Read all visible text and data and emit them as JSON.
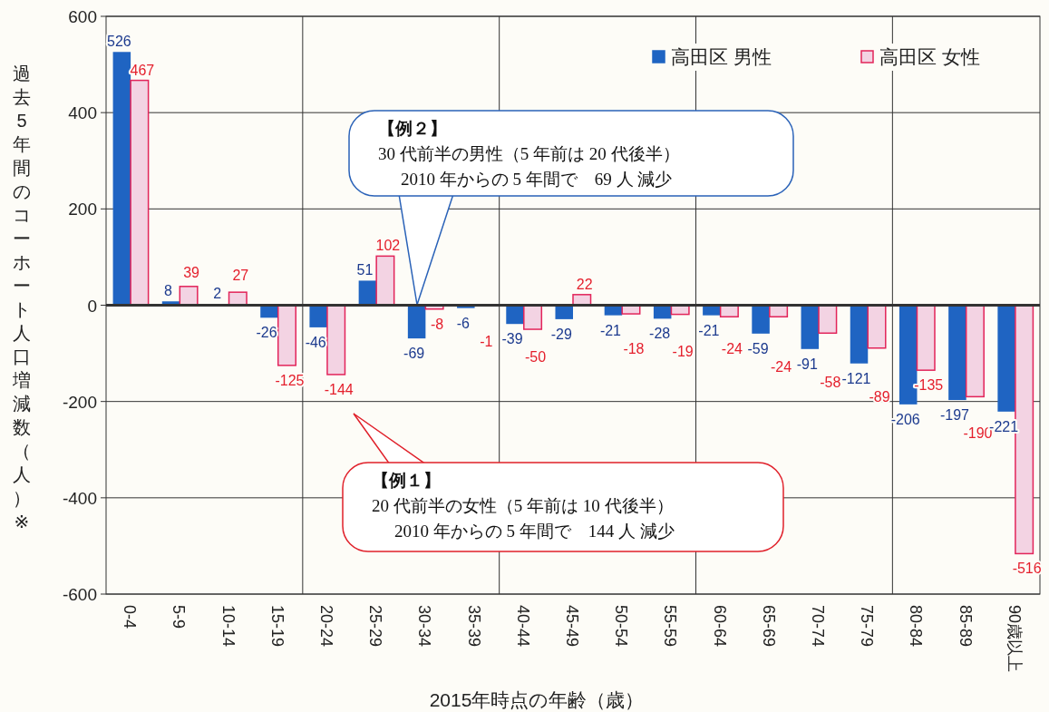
{
  "chart_data": {
    "type": "bar",
    "xlabel": "2015年時点の年齢（歳）",
    "ylabel": "過去5年間のコーホート人口増減数（人）※",
    "categories": [
      "0-4",
      "5-9",
      "10-14",
      "15-19",
      "20-24",
      "25-29",
      "30-34",
      "35-39",
      "40-44",
      "45-49",
      "50-54",
      "55-59",
      "60-64",
      "65-69",
      "70-74",
      "75-79",
      "80-84",
      "85-89",
      "90歳以上"
    ],
    "series": [
      {
        "name": "高田区 男性",
        "color": "#1f64c2",
        "values": [
          526,
          8,
          2,
          -26,
          -46,
          51,
          -69,
          -6,
          -39,
          -29,
          -21,
          -28,
          -21,
          -59,
          -91,
          -121,
          -206,
          -197,
          -221
        ]
      },
      {
        "name": "高田区 女性",
        "color": "#f3d3e3",
        "values": [
          467,
          39,
          27,
          -125,
          -144,
          102,
          -8,
          -1,
          -50,
          22,
          -18,
          -19,
          -24,
          -24,
          -58,
          -89,
          -135,
          -190,
          -516
        ]
      }
    ],
    "ylim": [
      -600,
      600
    ],
    "yticks": [
      -600,
      -400,
      -200,
      0,
      200,
      400,
      600
    ],
    "grid": true,
    "legend": "top right",
    "data_labels": true,
    "annotations": [
      "【例２】\n30 代前半の男性（5 年前は 20 代後半）\n2010 年からの 5 年間で　69 人 減少",
      "【例１】\n20 代前半の女性（5 年前は 10 代後半）\n2010 年からの 5 年間で　144 人 減少"
    ]
  }
}
